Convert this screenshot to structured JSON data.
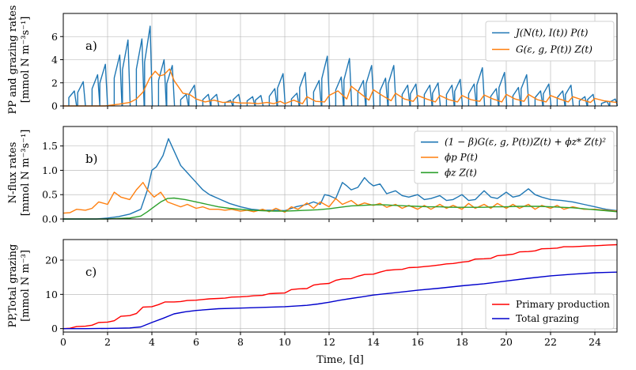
{
  "xlabel": "Time, [d]",
  "xlim": [
    0,
    25
  ],
  "x_ticks": [
    0,
    2,
    4,
    6,
    8,
    10,
    12,
    14,
    16,
    18,
    20,
    22,
    24
  ],
  "grid": true,
  "colors": {
    "blue": "#1f77b4",
    "orange": "#ff7f0e",
    "green": "#2ca02c",
    "red": "#ff0000",
    "navy": "#0000cc",
    "grid": "#b0b0b0"
  },
  "chart_data": [
    {
      "type": "line",
      "panel_label": "a)",
      "ylabel_lines": [
        "PP and grazing rates",
        "[mmol N m⁻³s⁻¹]"
      ],
      "ylim": [
        0,
        8
      ],
      "y_ticks": [
        0,
        2,
        4,
        6
      ],
      "legend_position": "upper right",
      "series": [
        {
          "name": "J(N(t), I(t)) P(t)",
          "color": "#1f77b4",
          "kind": "pulses",
          "pulses": [
            [
              0.25,
              1.3
            ],
            [
              0.65,
              2.1
            ],
            [
              1.3,
              2.7
            ],
            [
              1.65,
              3.6
            ],
            [
              2.3,
              4.4
            ],
            [
              2.67,
              5.7
            ],
            [
              3.3,
              5.8
            ],
            [
              3.67,
              6.9
            ],
            [
              4.3,
              4.0
            ],
            [
              4.67,
              3.5
            ],
            [
              5.3,
              1.0
            ],
            [
              5.67,
              1.8
            ],
            [
              6.3,
              1.0
            ],
            [
              6.67,
              1.0
            ],
            [
              7.3,
              0.5
            ],
            [
              7.67,
              1.0
            ],
            [
              8.3,
              0.8
            ],
            [
              8.67,
              0.9
            ],
            [
              9.3,
              1.5
            ],
            [
              9.67,
              2.8
            ],
            [
              10.3,
              1.1
            ],
            [
              10.67,
              2.9
            ],
            [
              11.3,
              2.2
            ],
            [
              11.67,
              4.3
            ],
            [
              12.3,
              2.5
            ],
            [
              12.67,
              4.1
            ],
            [
              13.3,
              2.2
            ],
            [
              13.67,
              3.5
            ],
            [
              14.3,
              2.4
            ],
            [
              14.67,
              3.5
            ],
            [
              15.3,
              1.8
            ],
            [
              15.67,
              1.9
            ],
            [
              16.3,
              1.8
            ],
            [
              16.67,
              2.0
            ],
            [
              17.3,
              1.8
            ],
            [
              17.67,
              2.3
            ],
            [
              18.3,
              1.9
            ],
            [
              18.67,
              3.3
            ],
            [
              19.3,
              1.5
            ],
            [
              19.67,
              2.9
            ],
            [
              20.3,
              1.6
            ],
            [
              20.67,
              2.7
            ],
            [
              21.3,
              1.3
            ],
            [
              21.67,
              1.9
            ],
            [
              22.3,
              1.3
            ],
            [
              22.67,
              1.8
            ],
            [
              23.3,
              0.8
            ],
            [
              23.67,
              1.0
            ],
            [
              24.3,
              0.4
            ],
            [
              24.67,
              0.6
            ]
          ]
        },
        {
          "name": "G(ε, g, P(t)) Z(t)",
          "color": "#ff7f0e",
          "kind": "line",
          "x": [
            0,
            1.9,
            2.5,
            3.0,
            3.3,
            3.6,
            3.9,
            4.15,
            4.35,
            4.55,
            4.8,
            5.0,
            5.4,
            5.7,
            6.0,
            6.4,
            6.8,
            7.2,
            7.6,
            8.0,
            8.4,
            8.8,
            9.2,
            9.5,
            9.8,
            10.0,
            10.4,
            10.8,
            11.0,
            11.4,
            11.8,
            12.0,
            12.4,
            12.8,
            13.0,
            13.4,
            13.8,
            14.0,
            14.4,
            14.8,
            15.0,
            15.4,
            15.8,
            16.0,
            16.4,
            16.8,
            17.0,
            17.4,
            17.8,
            18.0,
            18.4,
            18.8,
            19.0,
            19.4,
            19.8,
            20.0,
            20.4,
            20.8,
            21.0,
            21.4,
            21.8,
            22.0,
            22.4,
            22.8,
            23.0,
            23.4,
            23.8,
            24.0,
            24.4,
            24.8,
            25.0
          ],
          "y": [
            0,
            0,
            0.15,
            0.3,
            0.6,
            1.2,
            2.4,
            3.0,
            2.6,
            2.7,
            3.2,
            2.2,
            1.1,
            1.0,
            0.6,
            0.35,
            0.5,
            0.3,
            0.35,
            0.25,
            0.25,
            0.2,
            0.3,
            0.2,
            0.4,
            0.2,
            0.5,
            0.2,
            0.8,
            0.4,
            0.35,
            0.9,
            1.3,
            0.6,
            1.7,
            1.1,
            0.5,
            1.4,
            0.9,
            0.45,
            1.1,
            0.6,
            0.4,
            0.9,
            0.6,
            0.35,
            0.9,
            0.55,
            0.35,
            0.9,
            0.55,
            0.4,
            0.95,
            0.6,
            0.35,
            1.0,
            0.6,
            0.4,
            1.0,
            0.55,
            0.35,
            0.9,
            0.6,
            0.35,
            0.8,
            0.55,
            0.3,
            0.65,
            0.45,
            0.35,
            0.3
          ]
        }
      ]
    },
    {
      "type": "line",
      "panel_label": "b)",
      "ylabel_lines": [
        "N-flux rates",
        "[mmol N m⁻³s⁻¹]"
      ],
      "ylim": [
        0,
        1.9
      ],
      "y_ticks": [
        0.0,
        0.5,
        1.0,
        1.5
      ],
      "y_tick_labels": [
        "0.0",
        "0.5",
        "1.0",
        "1.5"
      ],
      "legend_position": "upper right",
      "series": [
        {
          "name": "(1 − β)G(ε, g, P(t))Z(t) + ϕz* Z(t)²",
          "color": "#1f77b4",
          "x": [
            0,
            1.5,
            2.0,
            2.5,
            3.0,
            3.5,
            3.8,
            4.0,
            4.2,
            4.5,
            4.75,
            5.0,
            5.3,
            5.6,
            5.8,
            6.0,
            6.3,
            6.6,
            7.0,
            7.5,
            8.0,
            8.5,
            9.0,
            9.5,
            10.0,
            10.5,
            11.0,
            11.3,
            11.6,
            11.8,
            12.0,
            12.3,
            12.6,
            12.8,
            13.0,
            13.3,
            13.6,
            13.8,
            14.0,
            14.3,
            14.6,
            15.0,
            15.3,
            15.6,
            16.0,
            16.3,
            16.6,
            17.0,
            17.3,
            17.6,
            18.0,
            18.3,
            18.6,
            19.0,
            19.3,
            19.6,
            20.0,
            20.3,
            20.6,
            21.0,
            21.3,
            21.6,
            22.0,
            22.5,
            23.0,
            23.5,
            24.0,
            24.5,
            25.0
          ],
          "y": [
            0,
            0,
            0.02,
            0.05,
            0.1,
            0.2,
            0.6,
            1.0,
            1.07,
            1.3,
            1.65,
            1.4,
            1.1,
            0.95,
            0.85,
            0.75,
            0.6,
            0.5,
            0.42,
            0.32,
            0.25,
            0.2,
            0.18,
            0.18,
            0.17,
            0.25,
            0.3,
            0.35,
            0.3,
            0.5,
            0.48,
            0.42,
            0.75,
            0.68,
            0.6,
            0.65,
            0.85,
            0.75,
            0.68,
            0.72,
            0.52,
            0.58,
            0.48,
            0.45,
            0.5,
            0.4,
            0.42,
            0.48,
            0.38,
            0.4,
            0.5,
            0.38,
            0.4,
            0.58,
            0.45,
            0.42,
            0.55,
            0.45,
            0.48,
            0.62,
            0.5,
            0.45,
            0.4,
            0.38,
            0.35,
            0.3,
            0.25,
            0.2,
            0.17
          ]
        },
        {
          "name": "ϕp P(t)",
          "color": "#ff7f0e",
          "x": [
            0,
            0.3,
            0.6,
            1.0,
            1.3,
            1.6,
            2.0,
            2.3,
            2.6,
            3.0,
            3.3,
            3.6,
            3.8,
            4.1,
            4.4,
            4.7,
            5.0,
            5.3,
            5.6,
            6.0,
            6.3,
            6.6,
            7.0,
            7.3,
            7.6,
            8.0,
            8.3,
            8.6,
            9.0,
            9.3,
            9.6,
            10.0,
            10.3,
            10.6,
            11.0,
            11.3,
            11.6,
            12.0,
            12.3,
            12.6,
            13.0,
            13.3,
            13.6,
            14.0,
            14.3,
            14.6,
            15.0,
            15.3,
            15.6,
            16.0,
            16.3,
            16.6,
            17.0,
            17.3,
            17.6,
            18.0,
            18.3,
            18.6,
            19.0,
            19.3,
            19.6,
            20.0,
            20.3,
            20.6,
            21.0,
            21.3,
            21.6,
            22.0,
            22.3,
            22.6,
            23.0,
            23.5,
            24.0,
            24.5,
            25.0
          ],
          "y": [
            0.12,
            0.13,
            0.2,
            0.18,
            0.22,
            0.35,
            0.3,
            0.55,
            0.45,
            0.4,
            0.6,
            0.75,
            0.6,
            0.45,
            0.55,
            0.35,
            0.3,
            0.25,
            0.3,
            0.22,
            0.25,
            0.2,
            0.2,
            0.18,
            0.2,
            0.16,
            0.18,
            0.15,
            0.2,
            0.15,
            0.22,
            0.14,
            0.25,
            0.2,
            0.33,
            0.22,
            0.35,
            0.25,
            0.42,
            0.3,
            0.38,
            0.28,
            0.33,
            0.28,
            0.32,
            0.24,
            0.3,
            0.22,
            0.28,
            0.2,
            0.28,
            0.2,
            0.3,
            0.22,
            0.28,
            0.2,
            0.32,
            0.22,
            0.3,
            0.22,
            0.32,
            0.22,
            0.3,
            0.22,
            0.3,
            0.2,
            0.28,
            0.22,
            0.28,
            0.2,
            0.25,
            0.2,
            0.2,
            0.18,
            0.16
          ]
        },
        {
          "name": "ϕz Z(t)",
          "color": "#2ca02c",
          "x": [
            0,
            2.0,
            3.0,
            3.5,
            3.8,
            4.1,
            4.4,
            4.7,
            5.0,
            5.5,
            6.0,
            6.5,
            7.0,
            7.5,
            8.0,
            8.5,
            9.0,
            9.5,
            10.0,
            10.5,
            11.0,
            11.5,
            12.0,
            12.5,
            13.0,
            13.5,
            14.0,
            14.5,
            15.0,
            15.5,
            16.0,
            16.5,
            17.0,
            17.5,
            18.0,
            18.5,
            19.0,
            19.5,
            20.0,
            20.5,
            21.0,
            21.5,
            22.0,
            22.5,
            23.0,
            23.5,
            24.0,
            24.5,
            25.0
          ],
          "y": [
            0,
            0,
            0.02,
            0.06,
            0.15,
            0.25,
            0.35,
            0.42,
            0.43,
            0.4,
            0.35,
            0.3,
            0.25,
            0.22,
            0.2,
            0.18,
            0.17,
            0.16,
            0.16,
            0.17,
            0.18,
            0.19,
            0.21,
            0.24,
            0.27,
            0.28,
            0.29,
            0.29,
            0.28,
            0.27,
            0.26,
            0.25,
            0.25,
            0.24,
            0.24,
            0.24,
            0.24,
            0.25,
            0.25,
            0.26,
            0.26,
            0.26,
            0.25,
            0.24,
            0.23,
            0.21,
            0.19,
            0.17,
            0.15
          ]
        }
      ]
    },
    {
      "type": "line",
      "panel_label": "c)",
      "ylabel_lines": [
        "PP,Total grazing",
        "[mmol N m⁻³]"
      ],
      "ylim": [
        -1,
        26
      ],
      "y_ticks": [
        0,
        10,
        20
      ],
      "legend_position": "lower right",
      "series": [
        {
          "name": "Primary production",
          "color": "#ff0000",
          "x": [
            0,
            0.3,
            0.6,
            1.0,
            1.3,
            1.6,
            2.0,
            2.3,
            2.6,
            3.0,
            3.3,
            3.6,
            4.0,
            4.3,
            4.6,
            5.0,
            5.3,
            5.6,
            6.0,
            6.3,
            6.6,
            7.0,
            7.3,
            7.6,
            8.0,
            8.3,
            8.6,
            9.0,
            9.3,
            9.6,
            10.0,
            10.3,
            10.6,
            11.0,
            11.3,
            11.6,
            12.0,
            12.3,
            12.6,
            13.0,
            13.3,
            13.6,
            14.0,
            14.3,
            14.6,
            15.0,
            15.3,
            15.6,
            16.0,
            16.3,
            16.6,
            17.0,
            17.3,
            17.6,
            18.0,
            18.3,
            18.6,
            19.0,
            19.3,
            19.6,
            20.0,
            20.3,
            20.6,
            21.0,
            21.3,
            21.6,
            22.0,
            22.3,
            22.6,
            23.0,
            23.3,
            23.6,
            24.0,
            24.3,
            24.6,
            25.0
          ],
          "y": [
            0,
            0.1,
            0.6,
            0.7,
            1.0,
            1.8,
            1.9,
            2.3,
            3.6,
            3.8,
            4.4,
            6.3,
            6.4,
            7.0,
            7.8,
            7.8,
            7.9,
            8.2,
            8.3,
            8.5,
            8.7,
            8.8,
            8.9,
            9.2,
            9.3,
            9.4,
            9.6,
            9.7,
            10.2,
            10.3,
            10.4,
            11.4,
            11.6,
            11.7,
            12.7,
            13.0,
            13.2,
            14.1,
            14.5,
            14.6,
            15.3,
            15.8,
            15.9,
            16.5,
            17.0,
            17.2,
            17.3,
            17.8,
            17.9,
            18.1,
            18.3,
            18.6,
            18.9,
            19.0,
            19.4,
            19.6,
            20.3,
            20.4,
            20.5,
            21.3,
            21.5,
            21.7,
            22.4,
            22.5,
            22.7,
            23.3,
            23.4,
            23.5,
            23.9,
            23.9,
            24.0,
            24.1,
            24.2,
            24.3,
            24.4,
            24.5
          ]
        },
        {
          "name": "Total grazing",
          "color": "#0000cc",
          "x": [
            0,
            1.0,
            2.0,
            3.0,
            3.5,
            4.0,
            4.5,
            5.0,
            5.5,
            6.0,
            7.0,
            8.0,
            9.0,
            10.0,
            11.0,
            11.5,
            12.0,
            12.5,
            13.0,
            13.5,
            14.0,
            15.0,
            16.0,
            17.0,
            18.0,
            19.0,
            19.5,
            20.0,
            21.0,
            22.0,
            23.0,
            24.0,
            25.0
          ],
          "y": [
            0,
            0,
            0.05,
            0.2,
            0.5,
            1.8,
            3.0,
            4.3,
            4.9,
            5.3,
            5.8,
            6.0,
            6.2,
            6.4,
            6.8,
            7.2,
            7.7,
            8.3,
            8.8,
            9.3,
            9.8,
            10.5,
            11.2,
            11.8,
            12.5,
            13.1,
            13.5,
            13.9,
            14.7,
            15.4,
            15.9,
            16.3,
            16.5
          ]
        }
      ]
    }
  ]
}
